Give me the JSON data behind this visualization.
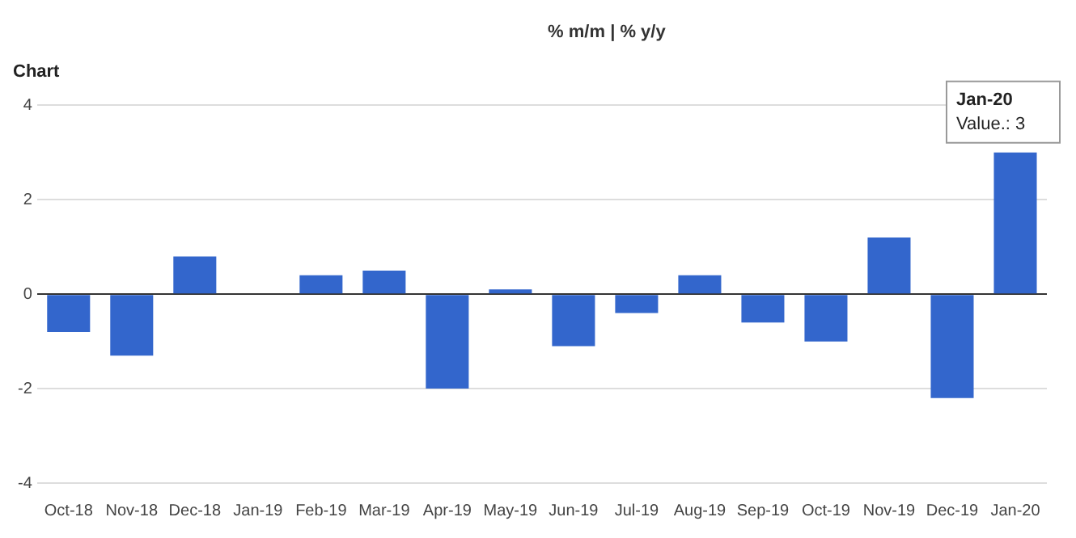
{
  "chart_data": {
    "type": "bar",
    "title": "Chart",
    "categories": [
      "Oct-18",
      "Nov-18",
      "Dec-18",
      "Jan-19",
      "Feb-19",
      "Mar-19",
      "Apr-19",
      "May-19",
      "Jun-19",
      "Jul-19",
      "Aug-19",
      "Sep-19",
      "Oct-19",
      "Nov-19",
      "Dec-19",
      "Jan-20"
    ],
    "values": [
      -0.8,
      -1.3,
      0.8,
      0,
      0.4,
      0.5,
      -2.0,
      0.1,
      -1.1,
      -0.4,
      0.4,
      -0.6,
      -1.0,
      1.2,
      -2.2,
      3
    ],
    "color": "#3366cc",
    "ylim": [
      -4,
      4
    ],
    "yticks": [
      -4,
      -2,
      0,
      2,
      4
    ],
    "grid": "y",
    "annotations": [
      "% m/m | % y/y",
      {
        "text": "Jan-20",
        "x": "Jan-20",
        "y": 3
      },
      {
        "text": "Value.: 3",
        "x": "Jan-20",
        "y": 3
      }
    ]
  }
}
